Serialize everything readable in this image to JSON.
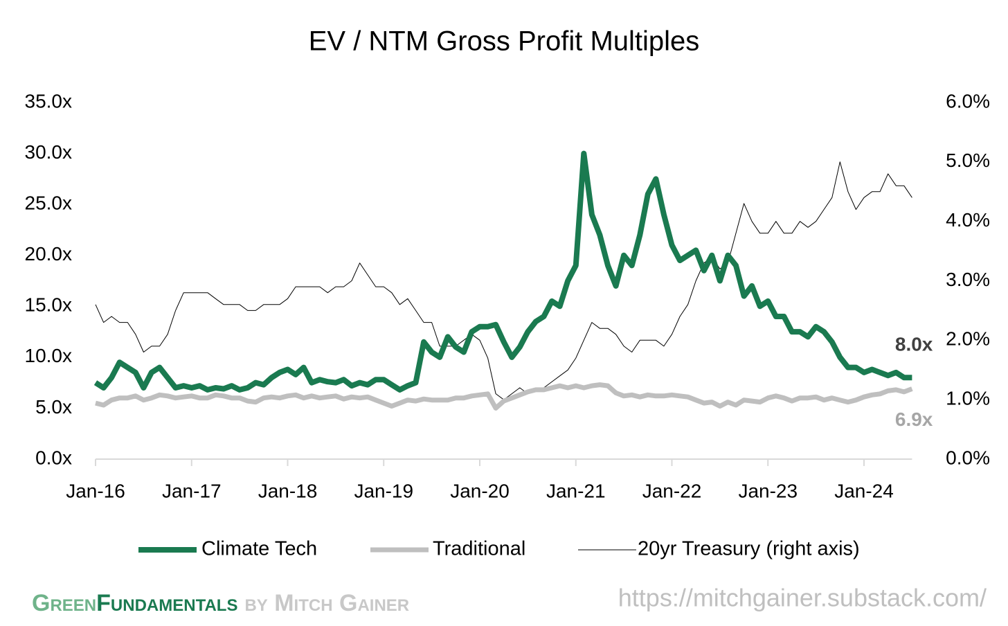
{
  "chart_data": {
    "type": "line",
    "title": "EV / NTM Gross Profit Multiples",
    "categories": [
      "Jan-16",
      null,
      null,
      null,
      null,
      null,
      null,
      null,
      null,
      null,
      null,
      null,
      "Jan-17",
      null,
      null,
      null,
      null,
      null,
      null,
      null,
      null,
      null,
      null,
      null,
      "Jan-18",
      null,
      null,
      null,
      null,
      null,
      null,
      null,
      null,
      null,
      null,
      null,
      "Jan-19",
      null,
      null,
      null,
      null,
      null,
      null,
      null,
      null,
      null,
      null,
      null,
      "Jan-20",
      null,
      null,
      null,
      null,
      null,
      null,
      null,
      null,
      null,
      null,
      null,
      "Jan-21",
      null,
      null,
      null,
      null,
      null,
      null,
      null,
      null,
      null,
      null,
      null,
      "Jan-22",
      null,
      null,
      null,
      null,
      null,
      null,
      null,
      null,
      null,
      null,
      null,
      "Jan-23",
      null,
      null,
      null,
      null,
      null,
      null,
      null,
      null,
      null,
      null,
      null,
      "Jan-24",
      null,
      null,
      null,
      null,
      null,
      null
    ],
    "ylim": [
      0,
      35
    ],
    "yticks": [
      {
        "value": 0,
        "label": "0.0x"
      },
      {
        "value": 5,
        "label": "5.0x"
      },
      {
        "value": 10,
        "label": "10.0x"
      },
      {
        "value": 15,
        "label": "15.0x"
      },
      {
        "value": 20,
        "label": "20.0x"
      },
      {
        "value": 25,
        "label": "25.0x"
      },
      {
        "value": 30,
        "label": "30.0x"
      },
      {
        "value": 35,
        "label": "35.0x"
      }
    ],
    "y2lim": [
      0,
      6
    ],
    "y2ticks": [
      {
        "value": 0,
        "label": "0.0%"
      },
      {
        "value": 1,
        "label": "1.0%"
      },
      {
        "value": 2,
        "label": "2.0%"
      },
      {
        "value": 3,
        "label": "3.0%"
      },
      {
        "value": 4,
        "label": "4.0%"
      },
      {
        "value": 5,
        "label": "5.0%"
      },
      {
        "value": 6,
        "label": "6.0%"
      }
    ],
    "legend": "bottom",
    "series": [
      {
        "name": "Climate Tech",
        "color": "#1a7a50",
        "values": [
          7.5,
          7.0,
          8.0,
          9.5,
          9.0,
          8.5,
          7.0,
          8.5,
          9.0,
          8.0,
          7.0,
          7.2,
          7.0,
          7.2,
          6.8,
          7.0,
          6.9,
          7.2,
          6.8,
          7.0,
          7.5,
          7.3,
          8.0,
          8.5,
          8.8,
          8.3,
          9.0,
          7.5,
          7.8,
          7.6,
          7.5,
          7.8,
          7.2,
          7.5,
          7.3,
          7.8,
          7.8,
          7.3,
          6.8,
          7.2,
          7.5,
          11.5,
          10.5,
          10.0,
          12.0,
          11.0,
          10.5,
          12.5,
          13.0,
          13.0,
          13.2,
          11.5,
          10.0,
          11.0,
          12.5,
          13.5,
          14.0,
          15.5,
          15.0,
          17.5,
          19.0,
          30.0,
          24.0,
          22.0,
          19.0,
          17.0,
          20.0,
          19.0,
          22.0,
          26.0,
          27.5,
          24.0,
          21.0,
          19.5,
          20.0,
          20.5,
          18.5,
          20.0,
          17.5,
          20.0,
          19.0,
          16.0,
          17.0,
          15.0,
          15.5,
          14.0,
          14.0,
          12.5,
          12.5,
          12.0,
          13.0,
          12.5,
          11.5,
          10.0,
          9.0,
          9.0,
          8.5,
          8.8,
          8.5,
          8.2,
          8.5,
          8.0,
          8.0
        ],
        "value_labels": [
          null,
          null,
          null,
          null,
          null,
          null,
          null,
          null,
          null,
          null,
          null,
          null,
          null,
          null,
          null,
          null,
          null,
          null,
          null,
          null,
          null,
          null,
          null,
          null,
          null,
          null,
          null,
          null,
          null,
          null,
          null,
          null,
          null,
          null,
          null,
          null,
          null,
          null,
          null,
          null,
          null,
          null,
          null,
          null,
          null,
          null,
          null,
          null,
          null,
          null,
          null,
          null,
          null,
          null,
          null,
          null,
          null,
          null,
          null,
          null,
          null,
          null,
          null,
          null,
          null,
          null,
          null,
          null,
          null,
          null,
          null,
          null,
          null,
          null,
          null,
          null,
          null,
          null,
          null,
          null,
          null,
          null,
          null,
          null,
          null,
          null,
          null,
          null,
          null,
          null,
          null,
          null,
          null,
          null,
          null,
          null,
          null,
          null,
          null,
          null,
          null,
          null,
          "8.0x"
        ]
      },
      {
        "name": "Traditional",
        "color": "#bfbfbf",
        "values": [
          5.5,
          5.3,
          5.8,
          6.0,
          6.0,
          6.2,
          5.8,
          6.0,
          6.3,
          6.2,
          6.0,
          6.1,
          6.2,
          6.0,
          6.0,
          6.3,
          6.2,
          6.0,
          6.0,
          5.7,
          5.6,
          6.0,
          6.1,
          6.0,
          6.2,
          6.3,
          6.0,
          6.2,
          6.0,
          6.1,
          6.2,
          5.9,
          6.1,
          6.0,
          6.1,
          5.8,
          5.5,
          5.2,
          5.5,
          5.8,
          5.7,
          5.9,
          5.8,
          5.8,
          5.8,
          6.0,
          6.0,
          6.2,
          6.3,
          6.4,
          5.0,
          5.7,
          6.0,
          6.3,
          6.6,
          6.8,
          6.8,
          7.0,
          7.2,
          7.0,
          7.2,
          7.0,
          7.2,
          7.3,
          7.2,
          6.5,
          6.2,
          6.3,
          6.1,
          6.3,
          6.2,
          6.2,
          6.3,
          6.2,
          6.1,
          5.8,
          5.5,
          5.6,
          5.2,
          5.6,
          5.3,
          5.8,
          5.7,
          5.6,
          6.0,
          6.2,
          6.0,
          5.7,
          6.0,
          6.0,
          6.1,
          5.8,
          6.0,
          5.8,
          5.6,
          5.8,
          6.1,
          6.3,
          6.4,
          6.7,
          6.8,
          6.6,
          6.9
        ],
        "value_labels": [
          null,
          null,
          null,
          null,
          null,
          null,
          null,
          null,
          null,
          null,
          null,
          null,
          null,
          null,
          null,
          null,
          null,
          null,
          null,
          null,
          null,
          null,
          null,
          null,
          null,
          null,
          null,
          null,
          null,
          null,
          null,
          null,
          null,
          null,
          null,
          null,
          null,
          null,
          null,
          null,
          null,
          null,
          null,
          null,
          null,
          null,
          null,
          null,
          null,
          null,
          null,
          null,
          null,
          null,
          null,
          null,
          null,
          null,
          null,
          null,
          null,
          null,
          null,
          null,
          null,
          null,
          null,
          null,
          null,
          null,
          null,
          null,
          null,
          null,
          null,
          null,
          null,
          null,
          null,
          null,
          null,
          null,
          null,
          null,
          null,
          null,
          null,
          null,
          null,
          null,
          null,
          null,
          null,
          null,
          null,
          null,
          null,
          null,
          null,
          null,
          null,
          null,
          "6.9x"
        ]
      },
      {
        "name": "20yr Treasury (right axis)",
        "color": "#000000",
        "axis": "y2",
        "values": [
          2.6,
          2.3,
          2.4,
          2.3,
          2.3,
          2.1,
          1.8,
          1.9,
          1.9,
          2.1,
          2.5,
          2.8,
          2.8,
          2.8,
          2.8,
          2.7,
          2.6,
          2.6,
          2.6,
          2.5,
          2.5,
          2.6,
          2.6,
          2.6,
          2.7,
          2.9,
          2.9,
          2.9,
          2.9,
          2.8,
          2.9,
          2.9,
          3.0,
          3.3,
          3.1,
          2.9,
          2.9,
          2.8,
          2.6,
          2.7,
          2.5,
          2.3,
          2.3,
          1.9,
          1.9,
          1.9,
          2.0,
          2.1,
          2.0,
          1.7,
          1.1,
          1.0,
          1.1,
          1.2,
          1.1,
          1.2,
          1.2,
          1.3,
          1.4,
          1.5,
          1.7,
          2.0,
          2.3,
          2.2,
          2.2,
          2.1,
          1.9,
          1.8,
          2.0,
          2.0,
          2.0,
          1.9,
          2.1,
          2.4,
          2.6,
          3.0,
          3.3,
          3.4,
          3.2,
          3.3,
          3.8,
          4.3,
          4.0,
          3.8,
          3.8,
          4.0,
          3.8,
          3.8,
          4.0,
          3.9,
          4.0,
          4.2,
          4.4,
          5.0,
          4.5,
          4.2,
          4.4,
          4.5,
          4.5,
          4.8,
          4.6,
          4.6,
          4.4
        ]
      }
    ]
  },
  "footer": {
    "brand_light": "Green",
    "brand_dark": "Fundamentals",
    "byline": "by Mitch Gainer",
    "url": "https://mitchgainer.substack.com/"
  }
}
